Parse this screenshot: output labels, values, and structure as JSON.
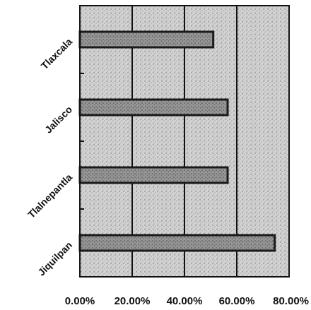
{
  "chart_data": {
    "type": "bar",
    "orientation": "horizontal",
    "categories": [
      "Tlaxcala",
      "Jalisco",
      "Tlalnepantla",
      "Jiquilpan"
    ],
    "values": [
      0.51,
      0.565,
      0.565,
      0.745
    ],
    "xlim": [
      0,
      0.8
    ],
    "xticks": [
      "0.00%",
      "20.00%",
      "40.00%",
      "60.00%",
      "80.00%"
    ],
    "title": "",
    "xlabel": "",
    "ylabel": "",
    "grid": "vertical",
    "legend": "none",
    "colors": {
      "plot_background": "#cfcfcf",
      "bar_fill": "#8e8e8e",
      "bar_stroke": "#1a1a1a",
      "gridline": "#111111"
    }
  }
}
